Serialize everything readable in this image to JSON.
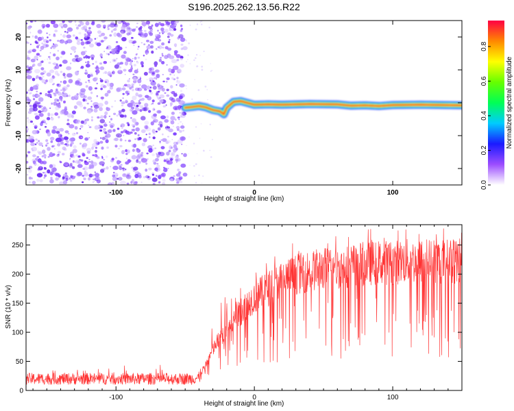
{
  "figure": {
    "title": "S196.2025.262.13.56.R22"
  },
  "chart_data": [
    {
      "type": "heatmap",
      "title": "S196.2025.262.13.56.R22",
      "xlabel": "Height of straight line (km)",
      "ylabel": "Frequency (Hz)",
      "xlim": [
        -165,
        150
      ],
      "ylim": [
        -25,
        25
      ],
      "x_ticks": [
        -100,
        0,
        100
      ],
      "y_ticks": [
        -20,
        -10,
        0,
        10,
        20
      ],
      "noise_region": {
        "x_from": -165,
        "x_to": -50,
        "description_color": "#7a3cff"
      },
      "signal_track": {
        "x": [
          -50,
          -45,
          -40,
          -35,
          -30,
          -25,
          -22,
          -20,
          -15,
          -10,
          0,
          10,
          20,
          40,
          60,
          70,
          80,
          90,
          100,
          120,
          150
        ],
        "y": [
          -1.5,
          -1.3,
          -1.0,
          -1.4,
          -2.2,
          -2.6,
          -3.5,
          -1.5,
          0.3,
          0.5,
          -0.6,
          -0.5,
          -0.6,
          -0.4,
          -0.5,
          -0.9,
          -0.8,
          -1.0,
          -0.7,
          -0.6,
          -0.8
        ]
      },
      "colorbar": {
        "label": "Normalized spectral amplitude",
        "range": [
          0,
          0.95
        ],
        "ticks": [
          "0.0",
          "0.2",
          "0.4",
          "0.6",
          "0.8"
        ],
        "colors": [
          "#ffffff",
          "#9c4dff",
          "#1a1aff",
          "#00ccff",
          "#00ff55",
          "#66ff00",
          "#ffff00",
          "#ff8800",
          "#ff0044"
        ]
      }
    },
    {
      "type": "line",
      "xlabel": "Height of straight line (km)",
      "ylabel": "SNR (10 * v/v)",
      "xlim": [
        -165,
        150
      ],
      "ylim": [
        0,
        285
      ],
      "x_ticks": [
        -100,
        0,
        100
      ],
      "y_ticks": [
        0,
        50,
        100,
        150,
        200,
        250
      ],
      "series": [
        {
          "name": "SNR",
          "color": "#ff3333",
          "x": [
            -165,
            -140,
            -120,
            -100,
            -80,
            -60,
            -45,
            -40,
            -35,
            -30,
            -25,
            -20,
            -15,
            -10,
            -5,
            0,
            10,
            20,
            30,
            40,
            50,
            60,
            70,
            80,
            90,
            100,
            110,
            120,
            130,
            140,
            150
          ],
          "y": [
            20,
            20,
            20,
            20,
            20,
            20,
            20,
            22,
            45,
            70,
            90,
            105,
            120,
            135,
            150,
            160,
            175,
            190,
            200,
            205,
            210,
            210,
            215,
            218,
            220,
            220,
            222,
            222,
            222,
            222,
            222
          ]
        }
      ]
    }
  ]
}
